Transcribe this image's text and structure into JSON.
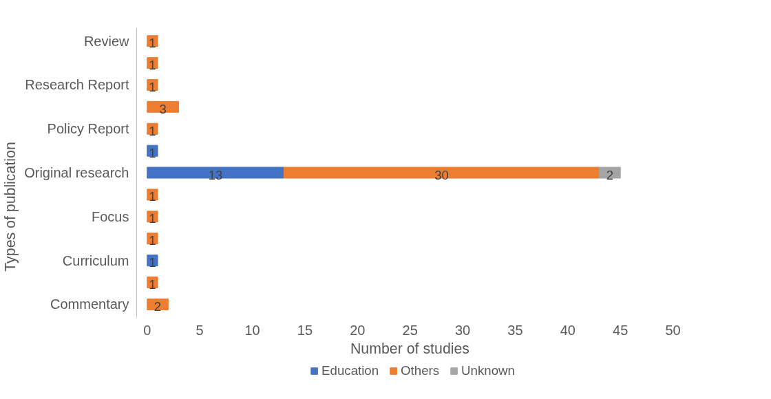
{
  "chart_data": {
    "type": "bar",
    "orientation": "horizontal",
    "stacked": true,
    "xlabel": "Number of studies",
    "ylabel": "Types of publication",
    "categories": [
      "Review",
      null,
      "Research Report",
      null,
      "Policy Report",
      null,
      "Original research",
      null,
      "Focus",
      null,
      "Curriculum",
      null,
      "Commentary"
    ],
    "series": [
      {
        "name": "Education",
        "color": "#4472c4",
        "values": [
          null,
          null,
          null,
          null,
          null,
          1,
          13,
          null,
          null,
          null,
          1,
          null,
          null
        ]
      },
      {
        "name": "Others",
        "color": "#ed7d31",
        "values": [
          1,
          1,
          1,
          3,
          1,
          null,
          30,
          1,
          1,
          1,
          null,
          1,
          2
        ]
      },
      {
        "name": "Unknown",
        "color": "#a5a5a5",
        "values": [
          null,
          null,
          null,
          null,
          null,
          null,
          2,
          null,
          null,
          null,
          null,
          null,
          null
        ]
      }
    ],
    "xlim": [
      0,
      50
    ],
    "xticks": [
      0,
      5,
      10,
      15,
      20,
      25,
      30,
      35,
      40,
      45,
      50
    ],
    "data_labels": true,
    "legend": "bottom",
    "grid": false
  }
}
